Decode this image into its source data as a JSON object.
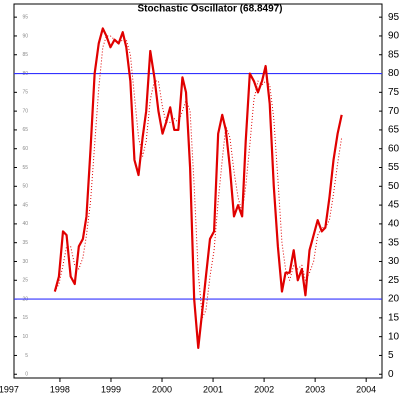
{
  "chart_data": {
    "type": "line",
    "title": "Stochastic Oscillator (68.8497)",
    "x": [
      1997.9,
      1997.98,
      1998.06,
      1998.13,
      1998.21,
      1998.29,
      1998.37,
      1998.45,
      1998.52,
      1998.6,
      1998.68,
      1998.76,
      1998.84,
      1998.91,
      1998.99,
      1999.07,
      1999.15,
      1999.23,
      1999.3,
      1999.38,
      1999.46,
      1999.54,
      1999.62,
      1999.69,
      1999.77,
      1999.85,
      1999.93,
      2000.01,
      2000.08,
      2000.16,
      2000.24,
      2000.32,
      2000.4,
      2000.47,
      2000.55,
      2000.63,
      2000.71,
      2000.79,
      2000.86,
      2000.94,
      2001.02,
      2001.1,
      2001.18,
      2001.25,
      2001.33,
      2001.41,
      2001.49,
      2001.57,
      2001.64,
      2001.72,
      2001.8,
      2001.88,
      2001.96,
      2002.03,
      2002.11,
      2002.19,
      2002.27,
      2002.35,
      2002.42,
      2002.5,
      2002.58,
      2002.66,
      2002.74,
      2002.81,
      2002.89,
      2002.97,
      2003.05,
      2003.13,
      2003.2,
      2003.28,
      2003.36,
      2003.44,
      2003.52
    ],
    "series": [
      {
        "color": "#e00000",
        "style": "solid",
        "values": [
          22,
          26,
          38,
          37,
          26,
          24,
          34,
          36,
          42,
          60,
          80,
          88,
          92,
          90,
          87,
          89,
          88,
          91,
          87,
          78,
          57,
          53,
          63,
          70,
          86,
          79,
          70,
          64,
          67,
          71,
          65,
          65,
          79,
          75,
          55,
          20,
          7,
          17,
          26,
          36,
          38,
          64,
          69,
          65,
          55,
          42,
          45,
          42,
          62,
          80,
          78,
          75,
          78,
          82,
          72,
          50,
          34,
          22,
          27,
          27,
          33,
          25,
          28,
          21,
          33,
          37,
          41,
          38,
          39,
          47,
          57,
          64,
          69
        ]
      },
      {
        "color": "#e00000",
        "style": "dotted",
        "values": [
          22,
          24,
          29,
          34,
          34,
          29,
          28,
          31,
          37,
          46,
          61,
          76,
          87,
          90,
          90,
          89,
          88,
          89,
          89,
          85,
          74,
          63,
          58,
          62,
          73,
          78,
          78,
          71,
          67,
          67,
          68,
          67,
          70,
          73,
          70,
          50,
          27,
          15,
          17,
          26,
          33,
          46,
          57,
          66,
          63,
          54,
          47,
          43,
          50,
          61,
          73,
          78,
          77,
          78,
          77,
          68,
          52,
          35,
          28,
          25,
          29,
          28,
          29,
          25,
          27,
          30,
          37,
          39,
          39,
          41,
          48,
          56,
          63
        ]
      }
    ],
    "hlines": [
      20,
      80
    ],
    "hline_color": "#3333ff",
    "xlim": [
      1997.1,
      2004.31
    ],
    "xticks": [
      1997,
      1998,
      1999,
      2000,
      2001,
      2002,
      2003,
      2004
    ],
    "ylim": [
      -1,
      98.5
    ],
    "yticks": [
      0,
      5,
      10,
      15,
      20,
      25,
      30,
      35,
      40,
      45,
      50,
      55,
      60,
      65,
      70,
      75,
      80,
      85,
      90,
      95
    ]
  }
}
